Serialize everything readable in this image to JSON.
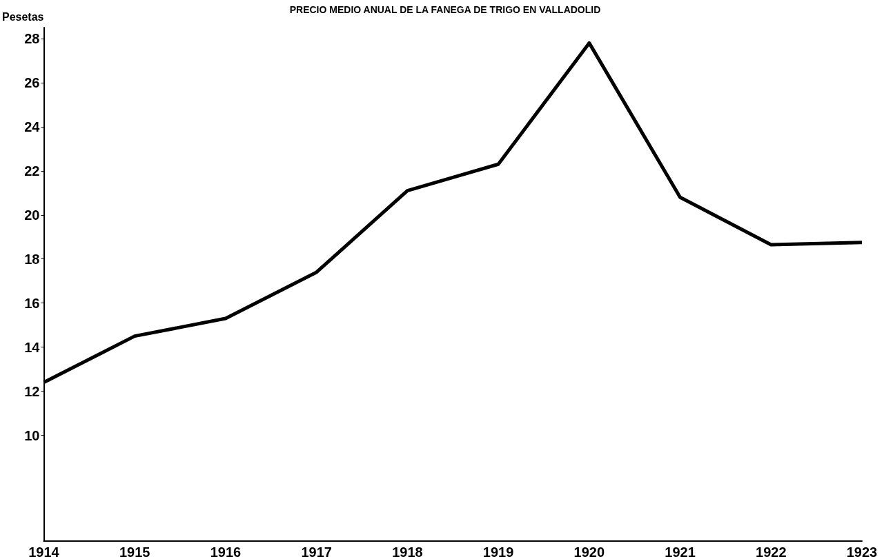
{
  "chart_data": {
    "type": "line",
    "title": "PRECIO MEDIO ANUAL DE LA FANEGA DE TRIGO EN VALLADOLID",
    "ylabel": "Pesetas",
    "categories": [
      "1914",
      "1915",
      "1916",
      "1917",
      "1918",
      "1919",
      "1920",
      "1921",
      "1922",
      "1923"
    ],
    "series": [
      {
        "color": "#000000",
        "values": [
          12.4,
          14.5,
          15.3,
          17.4,
          21.1,
          22.3,
          27.8,
          20.8,
          18.65,
          18.75
        ]
      }
    ],
    "ylim": [
      5.2,
      28.5
    ],
    "yticks": [
      10,
      12,
      14,
      16,
      18,
      20,
      22,
      24,
      26,
      28
    ],
    "grid": false,
    "marker": "none",
    "line_style": "solid"
  }
}
